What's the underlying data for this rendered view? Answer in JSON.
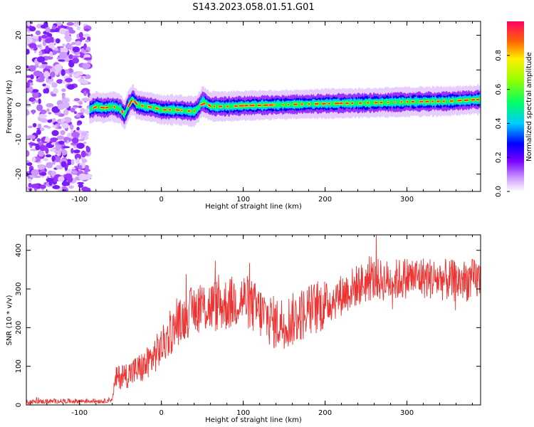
{
  "page": {
    "title": "S143.2023.058.01.51.G01"
  },
  "colors": {
    "snr_line": "#ee3333",
    "axis": "#000000"
  },
  "chart_data": [
    {
      "type": "heatmap",
      "title": "S143.2023.058.01.51.G01",
      "xlabel": "Height of straight line (km)",
      "ylabel": "Frequency (Hz)",
      "xlim": [
        -165,
        390
      ],
      "ylim": [
        -25,
        24
      ],
      "x_ticks": [
        -100,
        0,
        100,
        200,
        300
      ],
      "y_ticks": [
        -20,
        -10,
        0,
        10,
        20
      ],
      "colorbar": {
        "label": "Normalized spectral amplitude",
        "range": [
          0.0,
          1.0
        ],
        "ticks": [
          0.0,
          0.2,
          0.4,
          0.6,
          0.8
        ]
      },
      "noise_region_km": [
        -165,
        -88
      ],
      "ridge": {
        "x": [
          -88,
          -80,
          -70,
          -60,
          -50,
          -45,
          -40,
          -35,
          -30,
          -20,
          -10,
          0,
          20,
          40,
          45,
          50,
          55,
          60,
          80,
          100,
          150,
          200,
          250,
          300,
          350,
          390
        ],
        "frequency": [
          -1.5,
          -0.5,
          -1.0,
          -0.5,
          -1.2,
          -3.0,
          0.0,
          1.5,
          0.0,
          -0.5,
          -0.8,
          -1.5,
          -1.5,
          -2.0,
          -1.0,
          1.0,
          0.3,
          -0.5,
          -0.5,
          -0.3,
          0.0,
          0.3,
          0.5,
          0.8,
          1.0,
          1.5
        ]
      }
    },
    {
      "type": "line",
      "xlabel": "Height of straight line (km)",
      "ylabel": "SNR (10 * v/v)",
      "xlim": [
        -165,
        390
      ],
      "ylim": [
        0,
        440
      ],
      "x_ticks": [
        -100,
        0,
        100,
        200,
        300
      ],
      "y_ticks": [
        0,
        100,
        200,
        300,
        400
      ],
      "series": [
        {
          "x": [
            -165,
            -120,
            -70,
            -60,
            -55,
            -40,
            -20,
            0,
            20,
            40,
            60,
            80,
            100,
            120,
            140,
            160,
            180,
            200,
            220,
            240,
            260,
            280,
            300,
            320,
            340,
            360,
            390
          ],
          "values": [
            8,
            10,
            10,
            15,
            70,
            80,
            100,
            150,
            210,
            250,
            255,
            260,
            275,
            240,
            210,
            220,
            245,
            260,
            285,
            310,
            325,
            320,
            330,
            330,
            325,
            320,
            325
          ]
        }
      ]
    }
  ]
}
